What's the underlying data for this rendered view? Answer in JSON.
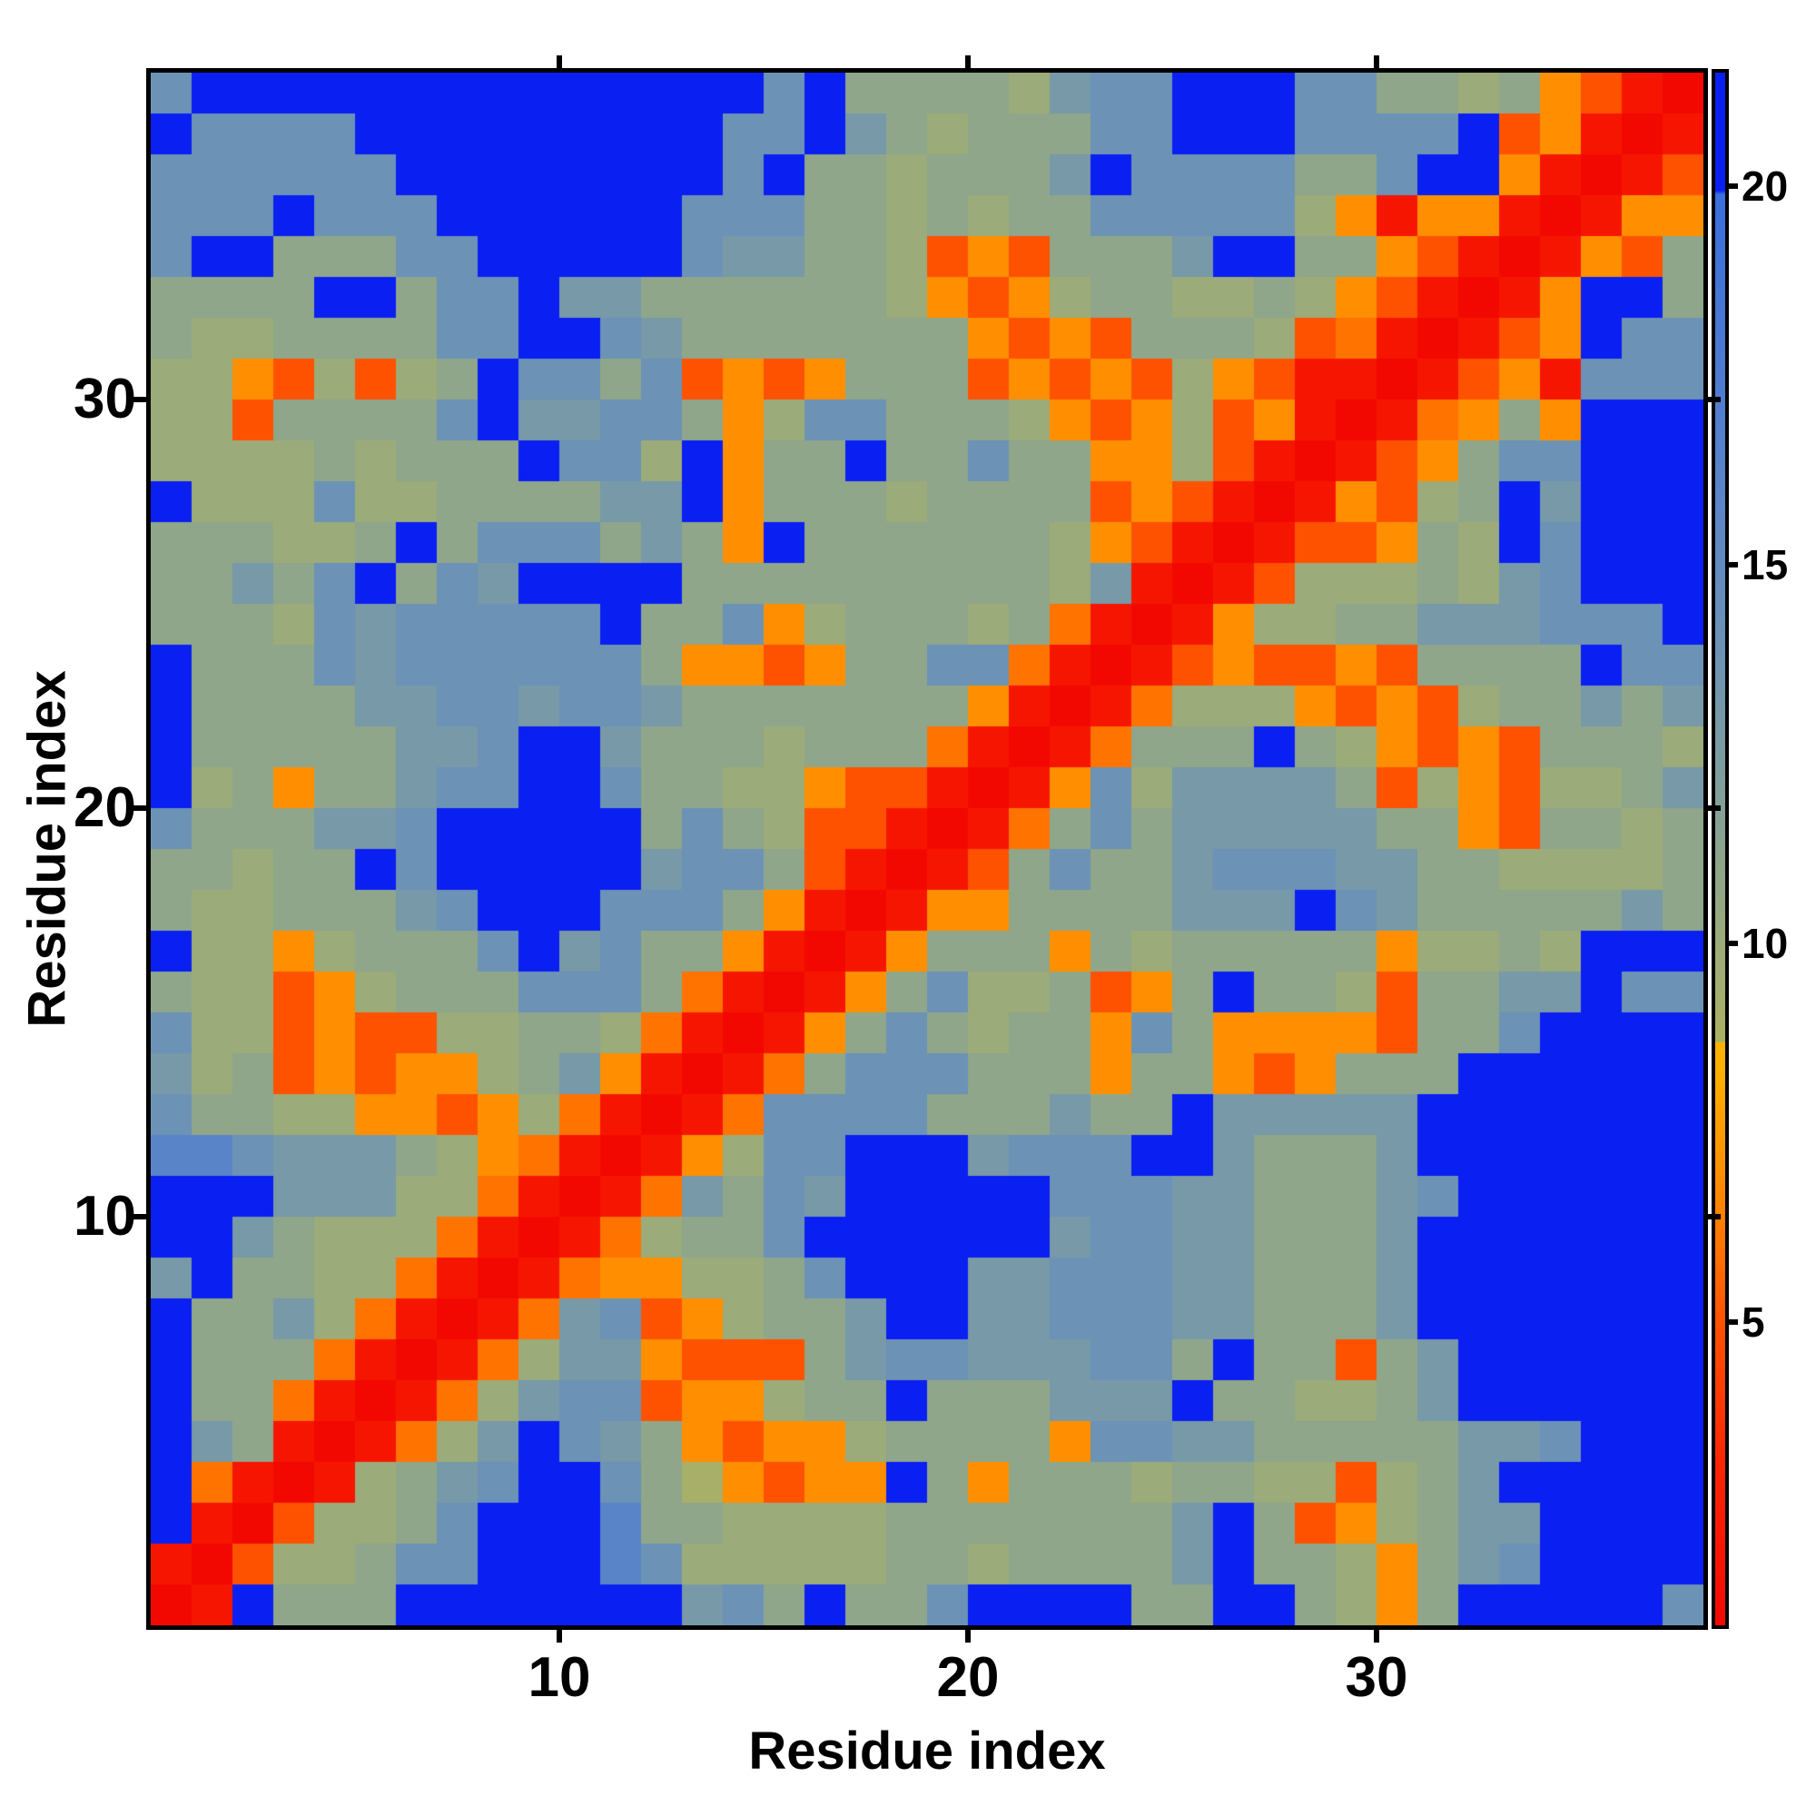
{
  "chart_data": {
    "type": "heatmap",
    "title": "",
    "xlabel": "Residue index",
    "ylabel": "Residue index",
    "x_ticks": [
      10,
      20,
      30
    ],
    "y_ticks": [
      10,
      20,
      30
    ],
    "n_residues": 38,
    "axis_range": [
      0,
      38
    ],
    "grid": false,
    "colorbar": {
      "ticks": [
        5,
        10,
        15,
        20
      ],
      "vmin": 1.0,
      "vmax": 21.5,
      "position": "right",
      "capped_color": "#0a1ff2"
    },
    "colormap_stops": [
      [
        1.0,
        "#f30800"
      ],
      [
        3.2,
        "#fa2600"
      ],
      [
        5.0,
        "#fe5200"
      ],
      [
        6.5,
        "#ff8300"
      ],
      [
        8.3,
        "#ffae00"
      ],
      [
        8.7,
        "#ffb400"
      ],
      [
        8.71,
        "#abb064"
      ],
      [
        10.0,
        "#9cab7a"
      ],
      [
        12.0,
        "#81a09a"
      ],
      [
        14.0,
        "#6c92b6"
      ],
      [
        16.0,
        "#5a84c8"
      ],
      [
        18.0,
        "#4a78d3"
      ],
      [
        19.9,
        "#3b6fdd"
      ],
      [
        19.95,
        "#0a1ff2"
      ],
      [
        21.5,
        "#0a1ff2"
      ]
    ],
    "matrix_rows_are_residue_1_to_38_bottom_to_top": true,
    "matrix": [
      [
        1,
        2,
        21,
        11,
        11,
        11,
        21,
        21,
        21,
        21,
        21,
        21,
        21,
        13,
        14,
        11,
        21,
        11,
        11,
        14,
        21,
        21,
        21,
        21,
        11,
        11,
        21,
        21,
        11,
        10,
        7,
        11,
        21,
        21,
        21,
        21,
        21,
        14
      ],
      [
        2,
        1,
        5,
        10,
        10,
        11,
        14,
        14,
        21,
        21,
        21,
        16,
        14,
        10,
        10,
        10,
        10,
        10,
        11,
        11,
        10,
        11,
        11,
        11,
        11,
        13,
        21,
        11,
        11,
        10,
        7,
        11,
        13,
        14,
        21,
        21,
        21,
        21
      ],
      [
        21,
        2,
        1,
        5,
        10,
        10,
        11,
        14,
        21,
        21,
        21,
        16,
        11,
        11,
        10,
        10,
        10,
        10,
        11,
        11,
        11,
        11,
        11,
        11,
        11,
        13,
        21,
        11,
        5,
        7,
        10,
        11,
        13,
        13,
        21,
        21,
        21,
        21
      ],
      [
        21,
        6,
        2,
        1,
        2,
        10,
        11,
        13,
        14,
        21,
        21,
        14,
        11,
        9,
        7,
        5,
        7,
        7,
        21,
        11,
        7,
        11,
        11,
        11,
        10,
        11,
        11,
        10,
        10,
        5,
        10,
        11,
        13,
        21,
        21,
        21,
        21,
        21
      ],
      [
        21,
        13,
        11,
        2,
        1,
        2,
        6,
        10,
        13,
        21,
        14,
        13,
        11,
        7,
        5,
        7,
        7,
        10,
        11,
        11,
        11,
        11,
        7,
        14,
        14,
        13,
        13,
        11,
        11,
        11,
        11,
        11,
        13,
        13,
        14,
        21,
        21,
        21
      ],
      [
        21,
        11,
        11,
        6,
        2,
        1,
        2,
        6,
        10,
        13,
        14,
        14,
        5,
        7,
        7,
        10,
        11,
        11,
        21,
        11,
        11,
        11,
        13,
        13,
        13,
        21,
        11,
        11,
        10,
        10,
        11,
        13,
        21,
        21,
        21,
        21,
        21,
        21
      ],
      [
        21,
        11,
        11,
        11,
        6,
        2,
        1,
        2,
        6,
        10,
        13,
        13,
        7,
        5,
        5,
        5,
        11,
        13,
        14,
        14,
        13,
        13,
        13,
        14,
        14,
        11,
        21,
        11,
        11,
        5,
        11,
        13,
        21,
        21,
        21,
        21,
        21,
        21
      ],
      [
        21,
        11,
        11,
        13,
        10,
        6,
        2,
        1,
        2,
        6,
        13,
        14,
        5,
        7,
        10,
        11,
        11,
        13,
        21,
        21,
        13,
        13,
        14,
        14,
        14,
        13,
        13,
        11,
        11,
        11,
        13,
        21,
        21,
        21,
        21,
        21,
        21,
        21
      ],
      [
        13,
        21,
        11,
        11,
        10,
        10,
        6,
        2,
        1,
        2,
        6,
        7,
        7,
        10,
        10,
        11,
        14,
        21,
        21,
        21,
        13,
        13,
        14,
        14,
        14,
        13,
        13,
        11,
        11,
        11,
        13,
        21,
        21,
        21,
        21,
        21,
        21,
        21
      ],
      [
        21,
        21,
        13,
        11,
        10,
        10,
        10,
        6,
        2,
        1,
        2,
        6,
        10,
        11,
        11,
        14,
        21,
        21,
        21,
        21,
        21,
        21,
        13,
        14,
        14,
        13,
        13,
        11,
        11,
        11,
        13,
        21,
        21,
        21,
        21,
        21,
        21,
        21
      ],
      [
        21,
        21,
        21,
        13,
        13,
        13,
        10,
        10,
        6,
        2,
        1,
        2,
        6,
        13,
        11,
        14,
        13,
        21,
        21,
        21,
        21,
        21,
        14,
        14,
        14,
        13,
        13,
        11,
        11,
        11,
        13,
        14,
        21,
        21,
        21,
        21,
        21,
        21
      ],
      [
        16,
        16,
        14,
        13,
        13,
        13,
        11,
        10,
        7,
        6,
        2,
        1,
        2,
        7,
        10,
        14,
        14,
        21,
        21,
        21,
        13,
        14,
        14,
        14,
        21,
        21,
        13,
        11,
        11,
        11,
        13,
        21,
        21,
        21,
        21,
        21,
        21,
        21
      ],
      [
        14,
        11,
        11,
        10,
        10,
        7,
        7,
        5,
        7,
        10,
        6,
        2,
        1,
        2,
        6,
        14,
        14,
        14,
        14,
        11,
        11,
        11,
        13,
        11,
        11,
        21,
        13,
        13,
        13,
        13,
        13,
        21,
        21,
        21,
        21,
        21,
        21,
        21
      ],
      [
        13,
        10,
        11,
        5,
        7,
        5,
        7,
        7,
        10,
        11,
        13,
        7,
        2,
        1,
        2,
        6,
        11,
        14,
        14,
        14,
        11,
        11,
        11,
        7,
        11,
        11,
        7,
        5,
        7,
        11,
        11,
        11,
        21,
        21,
        21,
        21,
        21,
        21
      ],
      [
        14,
        10,
        10,
        5,
        7,
        5,
        5,
        10,
        10,
        11,
        11,
        10,
        6,
        2,
        1,
        2,
        7,
        11,
        14,
        11,
        10,
        11,
        11,
        7,
        14,
        11,
        7,
        7,
        7,
        7,
        5,
        11,
        11,
        14,
        21,
        21,
        21,
        21
      ],
      [
        11,
        10,
        10,
        5,
        7,
        10,
        11,
        11,
        11,
        14,
        14,
        14,
        11,
        6,
        2,
        1,
        2,
        7,
        11,
        14,
        10,
        10,
        11,
        5,
        7,
        11,
        21,
        11,
        11,
        10,
        5,
        11,
        11,
        13,
        13,
        21,
        14,
        14
      ],
      [
        21,
        10,
        10,
        7,
        10,
        11,
        11,
        11,
        14,
        21,
        13,
        14,
        11,
        11,
        7,
        2,
        1,
        2,
        7,
        11,
        11,
        11,
        7,
        11,
        10,
        11,
        11,
        11,
        11,
        11,
        7,
        10,
        10,
        11,
        10,
        21,
        21,
        21
      ],
      [
        11,
        10,
        10,
        11,
        11,
        11,
        13,
        14,
        21,
        21,
        21,
        14,
        14,
        14,
        11,
        7,
        2,
        1,
        2,
        7,
        7,
        11,
        11,
        11,
        11,
        13,
        13,
        13,
        21,
        14,
        13,
        11,
        11,
        11,
        11,
        11,
        13,
        11
      ],
      [
        11,
        11,
        10,
        11,
        11,
        21,
        14,
        21,
        21,
        21,
        21,
        21,
        13,
        14,
        14,
        11,
        5,
        2,
        1,
        2,
        5,
        11,
        14,
        11,
        11,
        13,
        14,
        14,
        14,
        13,
        13,
        11,
        11,
        10,
        10,
        10,
        10,
        11
      ],
      [
        14,
        11,
        11,
        11,
        13,
        13,
        14,
        21,
        21,
        21,
        21,
        21,
        11,
        14,
        11,
        10,
        5,
        5,
        2,
        1,
        2,
        6,
        11,
        14,
        11,
        13,
        13,
        13,
        13,
        13,
        11,
        11,
        7,
        5,
        11,
        11,
        10,
        11
      ],
      [
        21,
        10,
        11,
        7,
        11,
        11,
        13,
        14,
        14,
        21,
        21,
        14,
        11,
        11,
        10,
        10,
        7,
        5,
        5,
        2,
        1,
        2,
        7,
        14,
        10,
        13,
        13,
        13,
        13,
        11,
        5,
        10,
        7,
        5,
        10,
        10,
        11,
        13
      ],
      [
        21,
        11,
        11,
        11,
        11,
        11,
        13,
        13,
        14,
        21,
        21,
        13,
        11,
        11,
        11,
        10,
        11,
        11,
        11,
        6,
        2,
        1,
        2,
        6,
        11,
        11,
        11,
        21,
        11,
        10,
        7,
        5,
        7,
        5,
        11,
        11,
        11,
        10
      ],
      [
        21,
        11,
        11,
        11,
        11,
        13,
        13,
        14,
        14,
        13,
        14,
        14,
        13,
        11,
        11,
        11,
        11,
        11,
        11,
        11,
        7,
        2,
        1,
        2,
        6,
        10,
        10,
        10,
        7,
        5,
        7,
        5,
        10,
        11,
        11,
        13,
        11,
        13
      ],
      [
        21,
        11,
        11,
        11,
        14,
        13,
        14,
        14,
        14,
        14,
        14,
        14,
        11,
        7,
        7,
        5,
        7,
        11,
        11,
        14,
        14,
        6,
        2,
        1,
        2,
        5,
        7,
        5,
        5,
        7,
        5,
        11,
        11,
        11,
        11,
        21,
        14,
        14
      ],
      [
        11,
        11,
        11,
        10,
        14,
        13,
        14,
        14,
        14,
        14,
        14,
        21,
        11,
        11,
        14,
        7,
        10,
        11,
        11,
        11,
        10,
        11,
        6,
        2,
        1,
        2,
        7,
        10,
        10,
        11,
        11,
        13,
        13,
        13,
        14,
        14,
        14,
        21
      ],
      [
        11,
        11,
        13,
        11,
        14,
        21,
        11,
        14,
        13,
        21,
        21,
        21,
        21,
        11,
        11,
        11,
        11,
        11,
        11,
        11,
        11,
        11,
        10,
        13,
        2,
        1,
        2,
        5,
        10,
        10,
        10,
        11,
        10,
        13,
        14,
        21,
        21,
        21
      ],
      [
        11,
        11,
        11,
        10,
        10,
        11,
        21,
        11,
        14,
        14,
        14,
        11,
        13,
        11,
        7,
        21,
        11,
        11,
        11,
        11,
        11,
        11,
        10,
        7,
        5,
        2,
        1,
        2,
        5,
        5,
        7,
        11,
        10,
        21,
        14,
        21,
        21,
        21
      ],
      [
        21,
        10,
        10,
        10,
        14,
        10,
        10,
        11,
        11,
        11,
        11,
        13,
        13,
        21,
        7,
        11,
        11,
        11,
        10,
        11,
        11,
        11,
        11,
        5,
        7,
        5,
        2,
        1,
        2,
        7,
        5,
        10,
        11,
        21,
        13,
        21,
        21,
        21
      ],
      [
        10,
        10,
        10,
        10,
        11,
        10,
        11,
        11,
        11,
        21,
        14,
        14,
        10,
        21,
        7,
        11,
        11,
        21,
        11,
        11,
        14,
        11,
        11,
        7,
        7,
        10,
        5,
        2,
        1,
        2,
        5,
        7,
        11,
        14,
        14,
        21,
        21,
        21
      ],
      [
        10,
        10,
        5,
        11,
        11,
        11,
        11,
        14,
        21,
        13,
        13,
        14,
        14,
        11,
        7,
        10,
        14,
        14,
        11,
        11,
        11,
        10,
        7,
        5,
        7,
        10,
        5,
        7,
        2,
        1,
        2,
        6,
        7,
        11,
        7,
        21,
        21,
        21
      ],
      [
        10,
        10,
        7,
        5,
        10,
        5,
        10,
        11,
        21,
        14,
        14,
        11,
        14,
        5,
        7,
        5,
        7,
        11,
        11,
        11,
        5,
        7,
        5,
        7,
        5,
        10,
        7,
        5,
        2,
        2,
        1,
        2,
        5,
        7,
        2,
        14,
        14,
        14
      ],
      [
        11,
        10,
        10,
        11,
        11,
        11,
        11,
        14,
        14,
        21,
        21,
        14,
        13,
        11,
        11,
        11,
        11,
        11,
        11,
        11,
        7,
        5,
        7,
        5,
        11,
        11,
        11,
        10,
        5,
        6,
        2,
        1,
        2,
        5,
        7,
        21,
        14,
        14
      ],
      [
        11,
        11,
        11,
        11,
        21,
        21,
        11,
        14,
        14,
        21,
        13,
        13,
        11,
        11,
        11,
        11,
        11,
        11,
        10,
        7,
        5,
        7,
        10,
        11,
        11,
        10,
        10,
        11,
        10,
        7,
        5,
        2,
        1,
        2,
        7,
        21,
        21,
        11
      ],
      [
        14,
        21,
        21,
        11,
        11,
        11,
        14,
        14,
        21,
        21,
        21,
        21,
        21,
        14,
        13,
        13,
        11,
        11,
        10,
        5,
        7,
        5,
        11,
        11,
        11,
        13,
        21,
        21,
        11,
        11,
        7,
        5,
        2,
        1,
        2,
        7,
        5,
        11
      ],
      [
        14,
        14,
        14,
        21,
        14,
        14,
        14,
        21,
        21,
        21,
        21,
        21,
        21,
        14,
        14,
        14,
        11,
        11,
        10,
        11,
        10,
        11,
        11,
        14,
        14,
        14,
        14,
        14,
        10,
        7,
        2,
        7,
        7,
        2,
        1,
        2,
        7,
        7
      ],
      [
        14,
        14,
        14,
        14,
        14,
        14,
        21,
        21,
        21,
        21,
        21,
        21,
        21,
        21,
        14,
        21,
        11,
        11,
        10,
        11,
        11,
        11,
        13,
        21,
        14,
        14,
        14,
        14,
        11,
        11,
        14,
        21,
        21,
        7,
        2,
        1,
        2,
        5
      ],
      [
        21,
        14,
        14,
        14,
        14,
        21,
        21,
        21,
        21,
        21,
        21,
        21,
        21,
        21,
        14,
        14,
        21,
        13,
        11,
        10,
        11,
        11,
        11,
        14,
        14,
        21,
        21,
        21,
        14,
        14,
        14,
        14,
        21,
        5,
        7,
        2,
        1,
        2
      ],
      [
        14,
        21,
        21,
        21,
        21,
        21,
        21,
        21,
        21,
        21,
        21,
        21,
        21,
        21,
        21,
        14,
        21,
        11,
        11,
        11,
        11,
        10,
        13,
        14,
        14,
        21,
        21,
        21,
        14,
        14,
        11,
        11,
        10,
        11,
        7,
        5,
        2,
        1
      ]
    ]
  }
}
